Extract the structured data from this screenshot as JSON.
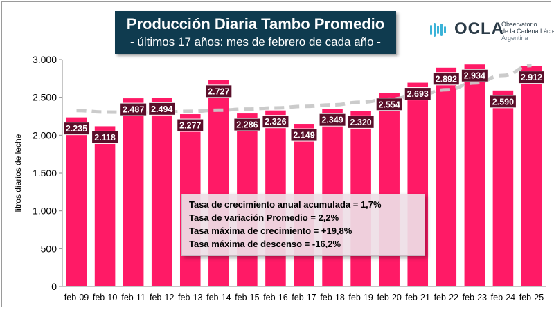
{
  "header": {
    "title": "Producción Diaria Tambo Promedio",
    "subtitle": "- últimos 17 años: mes de febrero de cada año -"
  },
  "logo": {
    "name": "OCLA",
    "line1": "Observatorio",
    "line2": "de la Cadena Láctea",
    "line3": "Argentina"
  },
  "stats": [
    "Tasa de crecimiento anual acumulada = 1,7%",
    "Tasa de variación Promedio = 2,2%",
    "Tasa máxima de crecimiento = +19,8%",
    "Tasa máxima de descenso = -16,2%"
  ],
  "colors": {
    "bar": "#ff1a66",
    "label_bg": "#5a0f2a",
    "trend": "#c8c8c8",
    "title_bg": "#0f3b4f"
  },
  "chart_data": {
    "type": "bar",
    "categories": [
      "feb-09",
      "feb-10",
      "feb-11",
      "feb-12",
      "feb-13",
      "feb-14",
      "feb-15",
      "feb-16",
      "feb-17",
      "feb-18",
      "feb-19",
      "feb-20",
      "feb-21",
      "feb-22",
      "feb-23",
      "feb-24",
      "feb-25"
    ],
    "values": [
      2235,
      2118,
      2487,
      2494,
      2277,
      2727,
      2286,
      2326,
      2149,
      2349,
      2320,
      2554,
      2693,
      2892,
      2934,
      2590,
      2912
    ],
    "value_labels": [
      "2.235",
      "2.118",
      "2.487",
      "2.494",
      "2.277",
      "2.727",
      "2.286",
      "2.326",
      "2.149",
      "2.349",
      "2.320",
      "2.554",
      "2.693",
      "2.892",
      "2.934",
      "2.590",
      "2.912"
    ],
    "trend": [
      2325,
      2305,
      2300,
      2305,
      2315,
      2330,
      2345,
      2360,
      2380,
      2400,
      2435,
      2475,
      2525,
      2600,
      2690,
      2790,
      2920
    ],
    "yticks": [
      0,
      500,
      1000,
      1500,
      2000,
      2500,
      3000
    ],
    "ytick_labels": [
      "0",
      "500",
      "1.000",
      "1.500",
      "2.000",
      "2.500",
      "3.000"
    ],
    "ylim": [
      0,
      3000
    ],
    "ylabel": "litros diarios de leche",
    "grid": false
  }
}
